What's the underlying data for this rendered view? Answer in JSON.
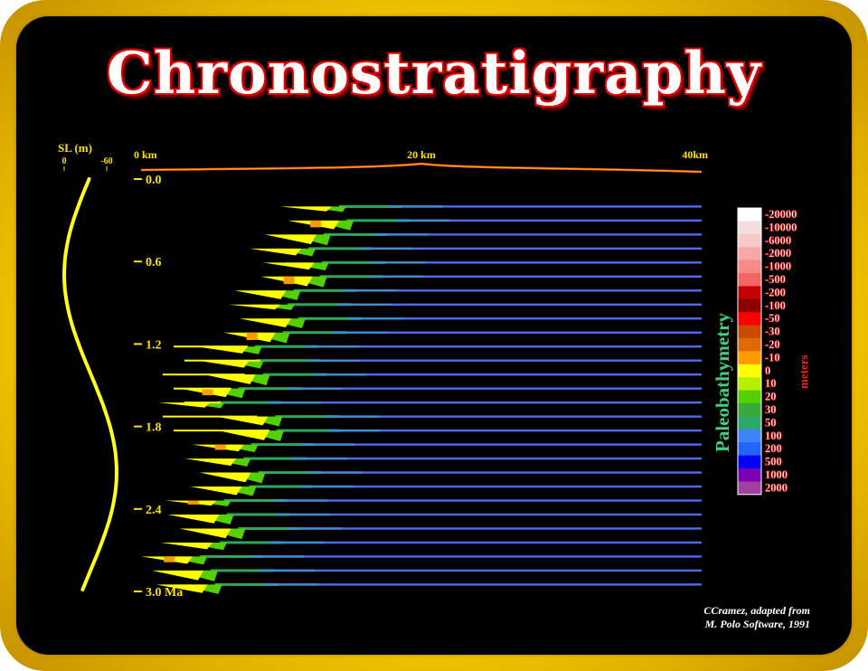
{
  "title": "Chronostratigraphy",
  "credit": [
    "CCramez, adapted  from",
    "M. Polo Software, 1991"
  ],
  "chart_data": {
    "type": "heatmap",
    "title": "Chronostratigraphy",
    "x_axis": {
      "ticks": [
        "0 km",
        "20 km",
        "40km"
      ],
      "range_km": [
        0,
        40
      ]
    },
    "y_axis": {
      "ticks": [
        "0.0",
        "0.6",
        "1.2",
        "1.8",
        "2.4",
        "3.0 Ma"
      ],
      "range_ma": [
        0,
        3.0
      ]
    },
    "sea_level_curve": {
      "label": "SL (m)",
      "ticks": [
        "0",
        "-60"
      ],
      "range_m": [
        0,
        -60
      ]
    },
    "colorbar": {
      "label": "Paleobathymetry",
      "unit": "meters",
      "labels": [
        "-20000",
        "-10000",
        "-6000",
        "-2000",
        "-1000",
        "-500",
        "-200",
        "-100",
        "-50",
        "-30",
        "-20",
        "-10",
        "0",
        "10",
        "20",
        "30",
        "50",
        "100",
        "200",
        "500",
        "1000",
        "2000"
      ],
      "colors": [
        "#ffffff",
        "#f2dede",
        "#f7c8c8",
        "#f7a9a9",
        "#f78989",
        "#f56565",
        "#c30000",
        "#8c0000",
        "#ff0000",
        "#c94a00",
        "#e06a00",
        "#ff9a00",
        "#ffff00",
        "#b4f000",
        "#52d000",
        "#3aa83a",
        "#2ba86a",
        "#3f82ff",
        "#2563ff",
        "#0000ff",
        "#7a00b4",
        "#a040a0"
      ]
    },
    "slices": {
      "count": 28,
      "age_range_ma": [
        0.2,
        2.95
      ]
    }
  },
  "colors": {
    "frame": "#ffd400",
    "background": "#000000",
    "axis_text": "#ffe000",
    "title_outline": "#e00000",
    "colorbar_text": "#ff2020",
    "label_green": "#3fd27a"
  }
}
